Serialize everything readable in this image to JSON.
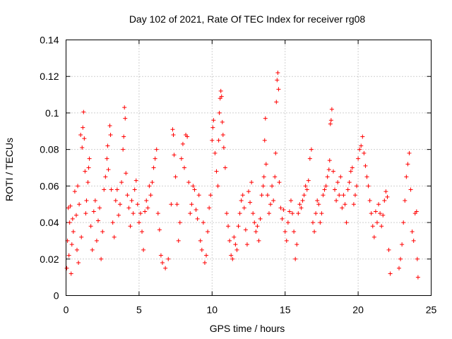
{
  "chart_data": {
    "type": "scatter",
    "title": "Day 102 of 2021, Rate Of TEC Index for receiver rg08",
    "xlabel": "GPS time / hours",
    "ylabel": "ROTI / TECUs",
    "xlim": [
      0,
      25
    ],
    "ylim": [
      0,
      0.14
    ],
    "grid": true,
    "legend": "none",
    "marker": "plus",
    "color": "#ff0000",
    "x_ticks": [
      0,
      5,
      10,
      15,
      20,
      25
    ],
    "x_tick_labels": [
      "0",
      "5",
      "10",
      "15",
      "20",
      "25"
    ],
    "y_ticks": [
      0,
      0.02,
      0.04,
      0.06,
      0.08,
      0.1,
      0.12,
      0.14
    ],
    "y_tick_labels": [
      "0",
      "0.02",
      "0.04",
      "0.06",
      "0.08",
      "0.1",
      "0.12",
      "0.14"
    ],
    "series": [
      {
        "name": "ROTI",
        "points": [
          [
            0.05,
            0.015
          ],
          [
            0.1,
            0.03
          ],
          [
            0.15,
            0.048
          ],
          [
            0.2,
            0.022
          ],
          [
            0.25,
            0.04
          ],
          [
            0.3,
            0.049
          ],
          [
            0.35,
            0.012
          ],
          [
            0.4,
            0.028
          ],
          [
            0.45,
            0.042
          ],
          [
            0.5,
            0.035
          ],
          [
            0.6,
            0.057
          ],
          [
            0.7,
            0.044
          ],
          [
            0.75,
            0.025
          ],
          [
            0.8,
            0.06
          ],
          [
            0.85,
            0.018
          ],
          [
            0.9,
            0.05
          ],
          [
            1.0,
            0.088
          ],
          [
            1.05,
            0.032
          ],
          [
            1.1,
            0.081
          ],
          [
            1.15,
            0.092
          ],
          [
            1.2,
            0.1005
          ],
          [
            1.25,
            0.086
          ],
          [
            1.3,
            0.068
          ],
          [
            1.35,
            0.045
          ],
          [
            1.4,
            0.052
          ],
          [
            1.5,
            0.062
          ],
          [
            1.55,
            0.07
          ],
          [
            1.6,
            0.075
          ],
          [
            1.7,
            0.038
          ],
          [
            1.8,
            0.025
          ],
          [
            1.9,
            0.046
          ],
          [
            2.0,
            0.052
          ],
          [
            2.1,
            0.03
          ],
          [
            2.2,
            0.041
          ],
          [
            2.3,
            0.048
          ],
          [
            2.4,
            0.02
          ],
          [
            2.5,
            0.035
          ],
          [
            2.6,
            0.058
          ],
          [
            2.7,
            0.065
          ],
          [
            2.8,
            0.075
          ],
          [
            2.85,
            0.082
          ],
          [
            2.9,
            0.069
          ],
          [
            3.0,
            0.093
          ],
          [
            3.05,
            0.088
          ],
          [
            3.1,
            0.058
          ],
          [
            3.2,
            0.04
          ],
          [
            3.3,
            0.032
          ],
          [
            3.4,
            0.052
          ],
          [
            3.5,
            0.058
          ],
          [
            3.6,
            0.044
          ],
          [
            3.7,
            0.05
          ],
          [
            3.8,
            0.062
          ],
          [
            3.9,
            0.08
          ],
          [
            3.95,
            0.087
          ],
          [
            4.0,
            0.103
          ],
          [
            4.05,
            0.097
          ],
          [
            4.1,
            0.067
          ],
          [
            4.2,
            0.055
          ],
          [
            4.3,
            0.048
          ],
          [
            4.4,
            0.038
          ],
          [
            4.5,
            0.052
          ],
          [
            4.6,
            0.045
          ],
          [
            4.7,
            0.058
          ],
          [
            4.8,
            0.063
          ],
          [
            4.9,
            0.05
          ],
          [
            5.0,
            0.04
          ],
          [
            5.1,
            0.045
          ],
          [
            5.2,
            0.035
          ],
          [
            5.3,
            0.025
          ],
          [
            5.4,
            0.046
          ],
          [
            5.5,
            0.052
          ],
          [
            5.6,
            0.048
          ],
          [
            5.7,
            0.06
          ],
          [
            5.8,
            0.055
          ],
          [
            5.9,
            0.062
          ],
          [
            6.0,
            0.07
          ],
          [
            6.1,
            0.075
          ],
          [
            6.2,
            0.08
          ],
          [
            6.3,
            0.045
          ],
          [
            6.4,
            0.036
          ],
          [
            6.5,
            0.022
          ],
          [
            6.6,
            0.018
          ],
          [
            6.8,
            0.015
          ],
          [
            7.0,
            0.02
          ],
          [
            7.2,
            0.05
          ],
          [
            7.3,
            0.091
          ],
          [
            7.35,
            0.088
          ],
          [
            7.4,
            0.077
          ],
          [
            7.5,
            0.065
          ],
          [
            7.6,
            0.05
          ],
          [
            7.7,
            0.03
          ],
          [
            7.8,
            0.04
          ],
          [
            7.9,
            0.075
          ],
          [
            8.0,
            0.083
          ],
          [
            8.1,
            0.07
          ],
          [
            8.2,
            0.088
          ],
          [
            8.3,
            0.087
          ],
          [
            8.4,
            0.062
          ],
          [
            8.5,
            0.045
          ],
          [
            8.6,
            0.05
          ],
          [
            8.7,
            0.06
          ],
          [
            8.8,
            0.058
          ],
          [
            8.9,
            0.047
          ],
          [
            9.0,
            0.042
          ],
          [
            9.1,
            0.055
          ],
          [
            9.2,
            0.03
          ],
          [
            9.3,
            0.025
          ],
          [
            9.4,
            0.04
          ],
          [
            9.5,
            0.018
          ],
          [
            9.6,
            0.022
          ],
          [
            9.7,
            0.035
          ],
          [
            9.8,
            0.048
          ],
          [
            9.9,
            0.055
          ],
          [
            10.0,
            0.085
          ],
          [
            10.05,
            0.092
          ],
          [
            10.1,
            0.096
          ],
          [
            10.2,
            0.078
          ],
          [
            10.3,
            0.068
          ],
          [
            10.4,
            0.06
          ],
          [
            10.45,
            0.085
          ],
          [
            10.5,
            0.1
          ],
          [
            10.55,
            0.108
          ],
          [
            10.6,
            0.112
          ],
          [
            10.65,
            0.109
          ],
          [
            10.7,
            0.095
          ],
          [
            10.75,
            0.088
          ],
          [
            10.8,
            0.081
          ],
          [
            10.9,
            0.07
          ],
          [
            11.0,
            0.045
          ],
          [
            11.1,
            0.038
          ],
          [
            11.2,
            0.03
          ],
          [
            11.3,
            0.022
          ],
          [
            11.4,
            0.02
          ],
          [
            11.5,
            0.032
          ],
          [
            11.6,
            0.028
          ],
          [
            11.7,
            0.025
          ],
          [
            11.8,
            0.038
          ],
          [
            11.9,
            0.045
          ],
          [
            12.0,
            0.052
          ],
          [
            12.1,
            0.055
          ],
          [
            12.2,
            0.048
          ],
          [
            12.3,
            0.036
          ],
          [
            12.4,
            0.028
          ],
          [
            12.5,
            0.057
          ],
          [
            12.6,
            0.051
          ],
          [
            12.7,
            0.062
          ],
          [
            12.8,
            0.045
          ],
          [
            12.9,
            0.04
          ],
          [
            13.0,
            0.035
          ],
          [
            13.1,
            0.038
          ],
          [
            13.2,
            0.03
          ],
          [
            13.3,
            0.042
          ],
          [
            13.4,
            0.055
          ],
          [
            13.5,
            0.06
          ],
          [
            13.55,
            0.065
          ],
          [
            13.6,
            0.085
          ],
          [
            13.65,
            0.097
          ],
          [
            13.7,
            0.072
          ],
          [
            13.8,
            0.055
          ],
          [
            13.9,
            0.045
          ],
          [
            14.0,
            0.05
          ],
          [
            14.1,
            0.06
          ],
          [
            14.2,
            0.052
          ],
          [
            14.3,
            0.065
          ],
          [
            14.35,
            0.078
          ],
          [
            14.4,
            0.106
          ],
          [
            14.45,
            0.118
          ],
          [
            14.5,
            0.122
          ],
          [
            14.55,
            0.113
          ],
          [
            14.6,
            0.062
          ],
          [
            14.7,
            0.048
          ],
          [
            14.8,
            0.042
          ],
          [
            14.9,
            0.047
          ],
          [
            15.0,
            0.035
          ],
          [
            15.1,
            0.03
          ],
          [
            15.2,
            0.04
          ],
          [
            15.3,
            0.046
          ],
          [
            15.4,
            0.052
          ],
          [
            15.5,
            0.045
          ],
          [
            15.6,
            0.035
          ],
          [
            15.7,
            0.02
          ],
          [
            15.8,
            0.028
          ],
          [
            15.9,
            0.045
          ],
          [
            16.0,
            0.05
          ],
          [
            16.1,
            0.048
          ],
          [
            16.2,
            0.052
          ],
          [
            16.3,
            0.055
          ],
          [
            16.4,
            0.06
          ],
          [
            16.5,
            0.058
          ],
          [
            16.6,
            0.063
          ],
          [
            16.7,
            0.075
          ],
          [
            16.8,
            0.08
          ],
          [
            16.9,
            0.04
          ],
          [
            17.0,
            0.035
          ],
          [
            17.1,
            0.045
          ],
          [
            17.2,
            0.052
          ],
          [
            17.3,
            0.05
          ],
          [
            17.4,
            0.04
          ],
          [
            17.5,
            0.045
          ],
          [
            17.6,
            0.055
          ],
          [
            17.7,
            0.058
          ],
          [
            17.8,
            0.06
          ],
          [
            17.9,
            0.065
          ],
          [
            18.0,
            0.069
          ],
          [
            18.05,
            0.074
          ],
          [
            18.1,
            0.094
          ],
          [
            18.15,
            0.096
          ],
          [
            18.2,
            0.102
          ],
          [
            18.3,
            0.068
          ],
          [
            18.4,
            0.058
          ],
          [
            18.5,
            0.052
          ],
          [
            18.6,
            0.062
          ],
          [
            18.7,
            0.055
          ],
          [
            18.8,
            0.065
          ],
          [
            18.9,
            0.048
          ],
          [
            19.0,
            0.055
          ],
          [
            19.1,
            0.05
          ],
          [
            19.2,
            0.04
          ],
          [
            19.3,
            0.058
          ],
          [
            19.4,
            0.062
          ],
          [
            19.5,
            0.068
          ],
          [
            19.6,
            0.07
          ],
          [
            19.7,
            0.05
          ],
          [
            19.8,
            0.055
          ],
          [
            19.9,
            0.06
          ],
          [
            20.0,
            0.075
          ],
          [
            20.1,
            0.08
          ],
          [
            20.2,
            0.082
          ],
          [
            20.3,
            0.087
          ],
          [
            20.4,
            0.078
          ],
          [
            20.5,
            0.071
          ],
          [
            20.6,
            0.065
          ],
          [
            20.7,
            0.06
          ],
          [
            20.8,
            0.052
          ],
          [
            20.9,
            0.045
          ],
          [
            21.0,
            0.038
          ],
          [
            21.1,
            0.032
          ],
          [
            21.2,
            0.046
          ],
          [
            21.3,
            0.04
          ],
          [
            21.4,
            0.05
          ],
          [
            21.5,
            0.045
          ],
          [
            21.6,
            0.038
          ],
          [
            21.7,
            0.044
          ],
          [
            21.8,
            0.052
          ],
          [
            21.9,
            0.057
          ],
          [
            22.0,
            0.054
          ],
          [
            22.1,
            0.025
          ],
          [
            22.2,
            0.012
          ],
          [
            22.8,
            0.015
          ],
          [
            22.9,
            0.02
          ],
          [
            23.0,
            0.028
          ],
          [
            23.1,
            0.04
          ],
          [
            23.2,
            0.052
          ],
          [
            23.3,
            0.065
          ],
          [
            23.4,
            0.072
          ],
          [
            23.5,
            0.078
          ],
          [
            23.6,
            0.058
          ],
          [
            23.7,
            0.035
          ],
          [
            23.8,
            0.03
          ],
          [
            23.9,
            0.045
          ],
          [
            24.0,
            0.046
          ],
          [
            24.05,
            0.02
          ],
          [
            24.1,
            0.01
          ]
        ]
      }
    ]
  }
}
